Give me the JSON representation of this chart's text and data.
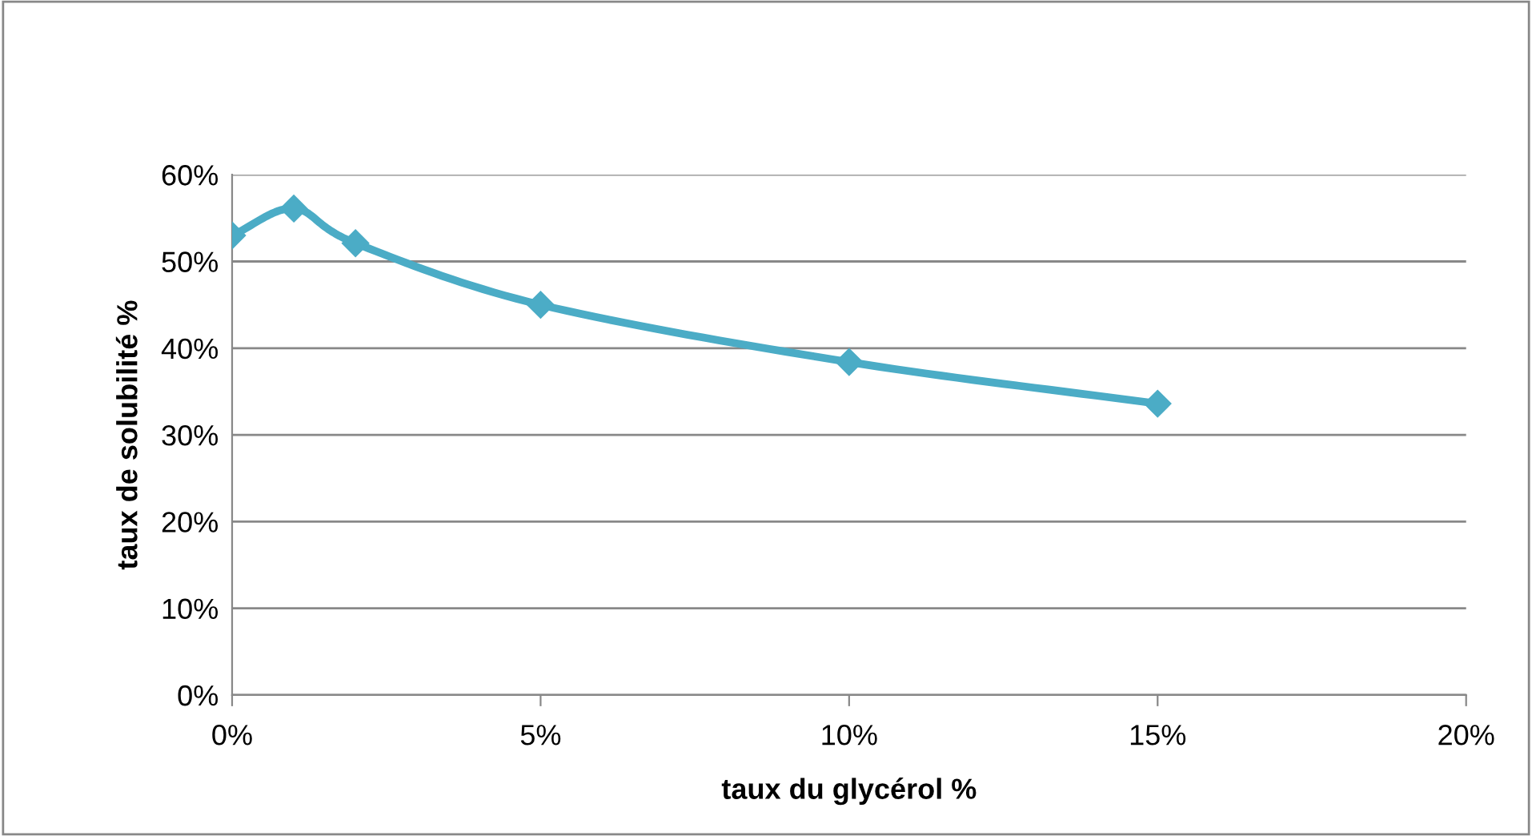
{
  "chart_data": {
    "type": "line",
    "xlabel": "taux du glycérol %",
    "ylabel": "taux de solubilité %",
    "x": [
      0,
      1,
      2,
      5,
      10,
      15
    ],
    "series": [
      {
        "color": "#4bacc6",
        "values": [
          53.0,
          56.1,
          52.1,
          45.0,
          38.4,
          33.6
        ]
      }
    ],
    "xlim": [
      0,
      20
    ],
    "xticks": [
      {
        "value": 0,
        "label": "0%"
      },
      {
        "value": 5,
        "label": "5%"
      },
      {
        "value": 10,
        "label": "10%"
      },
      {
        "value": 15,
        "label": "15%"
      },
      {
        "value": 20,
        "label": "20%"
      }
    ],
    "ylim": [
      0,
      60
    ],
    "yticks": [
      {
        "value": 0,
        "label": "0%"
      },
      {
        "value": 10,
        "label": "10%"
      },
      {
        "value": 20,
        "label": "20%"
      },
      {
        "value": 30,
        "label": "30%"
      },
      {
        "value": 40,
        "label": "40%"
      },
      {
        "value": 50,
        "label": "50%"
      },
      {
        "value": 60,
        "label": "60%"
      }
    ],
    "grid": "y",
    "legend": false,
    "marker": "diamond",
    "line_style": "solid"
  }
}
